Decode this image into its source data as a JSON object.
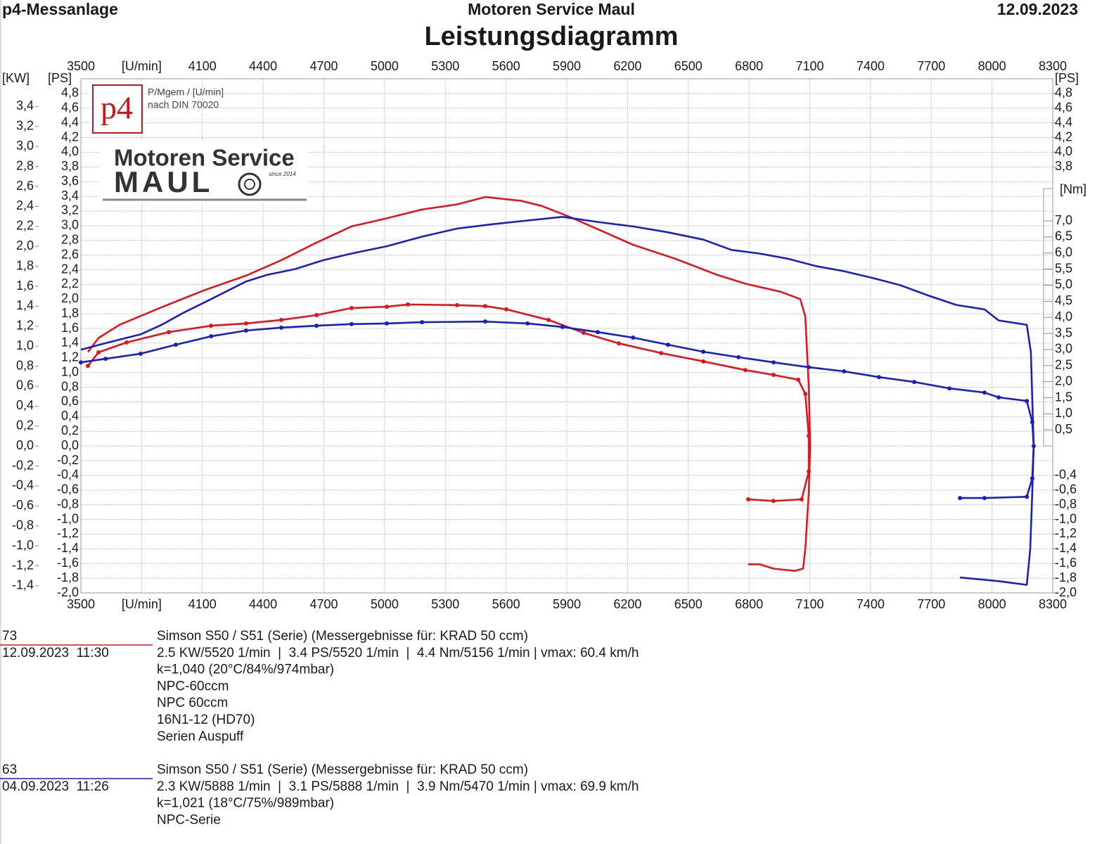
{
  "header": {
    "left": "p4-Messanlage",
    "center": "Motoren Service Maul",
    "right": "12.09.2023"
  },
  "chart_data": {
    "type": "line",
    "title": "Leistungsdiagramm",
    "logo": {
      "badge": "p4",
      "note1": "P/Mgem / [U/min]",
      "note2": "nach DIN 70020",
      "brand1": "Motoren Service",
      "brand2": "MAUL",
      "since": "since 2014"
    },
    "grid": true,
    "xlim": [
      3500,
      8300
    ],
    "xticks": [
      3500,
      {
        "value": 3800,
        "label": "[U/min]"
      },
      4100,
      4400,
      4700,
      5000,
      5300,
      5600,
      5900,
      6200,
      6500,
      6800,
      7100,
      7400,
      7700,
      8000,
      8300
    ],
    "ylabel": "[PS]",
    "ylim": [
      -2.0,
      5.0
    ],
    "yticks": [
      {
        "value": -2.0,
        "label": "-2,0"
      },
      {
        "value": -1.8,
        "label": "-1,8"
      },
      {
        "value": -1.6,
        "label": "-1,6"
      },
      {
        "value": -1.4,
        "label": "-1,4"
      },
      {
        "value": -1.2,
        "label": "-1,2"
      },
      {
        "value": -1.0,
        "label": "-1,0"
      },
      {
        "value": -0.8,
        "label": "-0,8"
      },
      {
        "value": -0.6,
        "label": "-0,6"
      },
      {
        "value": -0.4,
        "label": "-0,4"
      },
      {
        "value": -0.2,
        "label": "-0,2"
      },
      {
        "value": 0.0,
        "label": "0,0"
      },
      {
        "value": 0.2,
        "label": "0,2"
      },
      {
        "value": 0.4,
        "label": "0,4"
      },
      {
        "value": 0.6,
        "label": "0,6"
      },
      {
        "value": 0.8,
        "label": "0,8"
      },
      {
        "value": 1.0,
        "label": "1,0"
      },
      {
        "value": 1.2,
        "label": "1,2"
      },
      {
        "value": 1.4,
        "label": "1,4"
      },
      {
        "value": 1.6,
        "label": "1,6"
      },
      {
        "value": 1.8,
        "label": "1,8"
      },
      {
        "value": 2.0,
        "label": "2,0"
      },
      {
        "value": 2.2,
        "label": "2,2"
      },
      {
        "value": 2.4,
        "label": "2,4"
      },
      {
        "value": 2.6,
        "label": "2,6"
      },
      {
        "value": 2.8,
        "label": "2,8"
      },
      {
        "value": 3.0,
        "label": "3,0"
      },
      {
        "value": 3.2,
        "label": "3,2"
      },
      {
        "value": 3.4,
        "label": "3,4"
      },
      {
        "value": 3.6,
        "label": "3,6"
      },
      {
        "value": 3.8,
        "label": "3,8"
      },
      {
        "value": 4.0,
        "label": "4,0"
      },
      {
        "value": 4.2,
        "label": "4,2"
      },
      {
        "value": 4.4,
        "label": "4,4"
      },
      {
        "value": 4.6,
        "label": "4,6"
      },
      {
        "value": 4.8,
        "label": "4,8"
      }
    ],
    "yticks_right": [
      {
        "value": 4.8,
        "label": "4,8"
      },
      {
        "value": 4.6,
        "label": "4,6"
      },
      {
        "value": 4.4,
        "label": "4,4"
      },
      {
        "value": 4.2,
        "label": "4,2"
      },
      {
        "value": 4.0,
        "label": "4,0"
      },
      {
        "value": 3.8,
        "label": "3,8"
      },
      {
        "value": -0.4,
        "label": "-0,4"
      },
      {
        "value": -0.6,
        "label": "-0,6"
      },
      {
        "value": -0.8,
        "label": "-0,8"
      },
      {
        "value": -1.0,
        "label": "-1,0"
      },
      {
        "value": -1.2,
        "label": "-1,2"
      },
      {
        "value": -1.4,
        "label": "-1,4"
      },
      {
        "value": -1.6,
        "label": "-1,6"
      },
      {
        "value": -1.8,
        "label": "-1,8"
      },
      {
        "value": -2.0,
        "label": "-2,0"
      }
    ],
    "kwlabel": "[KW]",
    "kwlim": [
      -1.471,
      3.678
    ],
    "kwticks": [
      {
        "value": -1.4,
        "label": "-1,4"
      },
      {
        "value": -1.2,
        "label": "-1,2"
      },
      {
        "value": -1.0,
        "label": "-1,0"
      },
      {
        "value": -0.8,
        "label": "-0,8"
      },
      {
        "value": -0.6,
        "label": "-0,6"
      },
      {
        "value": -0.4,
        "label": "-0,4"
      },
      {
        "value": -0.2,
        "label": "-0,2"
      },
      {
        "value": 0.0,
        "label": "0,0"
      },
      {
        "value": 0.2,
        "label": "0,2"
      },
      {
        "value": 0.4,
        "label": "0,4"
      },
      {
        "value": 0.6,
        "label": "0,6"
      },
      {
        "value": 0.8,
        "label": "0,8"
      },
      {
        "value": 1.0,
        "label": "1,0"
      },
      {
        "value": 1.2,
        "label": "1,2"
      },
      {
        "value": 1.4,
        "label": "1,4"
      },
      {
        "value": 1.6,
        "label": "1,6"
      },
      {
        "value": 1.8,
        "label": "1,8"
      },
      {
        "value": 2.0,
        "label": "2,0"
      },
      {
        "value": 2.2,
        "label": "2,2"
      },
      {
        "value": 2.4,
        "label": "2,4"
      },
      {
        "value": 2.6,
        "label": "2,6"
      },
      {
        "value": 2.8,
        "label": "2,8"
      },
      {
        "value": 3.0,
        "label": "3,0"
      },
      {
        "value": 3.2,
        "label": "3,2"
      },
      {
        "value": 3.4,
        "label": "3,4"
      }
    ],
    "y2label": "[Nm]",
    "y2lim": [
      -4.57,
      11.42
    ],
    "y2ticks": [
      {
        "value": 0.5,
        "label": "0,5"
      },
      {
        "value": 1.0,
        "label": "1,0"
      },
      {
        "value": 1.5,
        "label": "1,5"
      },
      {
        "value": 2.0,
        "label": "2,0"
      },
      {
        "value": 2.5,
        "label": "2,5"
      },
      {
        "value": 3.0,
        "label": "3,0"
      },
      {
        "value": 3.5,
        "label": "3,5"
      },
      {
        "value": 4.0,
        "label": "4,0"
      },
      {
        "value": 4.5,
        "label": "4,5"
      },
      {
        "value": 5.0,
        "label": "5,0"
      },
      {
        "value": 5.5,
        "label": "5,5"
      },
      {
        "value": 6.0,
        "label": "6,0"
      },
      {
        "value": 6.5,
        "label": "6,5"
      },
      {
        "value": 7.0,
        "label": "7,0"
      }
    ],
    "series": [
      {
        "color": "#e3141b",
        "axis": "y",
        "markers": false,
        "x": [
          3535,
          3587,
          3691,
          3899,
          4108,
          4316,
          4490,
          4664,
          4837,
          5011,
          5185,
          5358,
          5497,
          5671,
          5775,
          5914,
          6088,
          6227,
          6435,
          6643,
          6782,
          6956,
          7053,
          7078,
          7095,
          7102,
          7095,
          7078,
          7067,
          7025,
          6921,
          6852,
          6796
        ],
        "values": [
          1.28,
          1.47,
          1.65,
          1.89,
          2.12,
          2.32,
          2.53,
          2.77,
          2.99,
          3.1,
          3.22,
          3.29,
          3.39,
          3.34,
          3.27,
          3.12,
          2.91,
          2.74,
          2.55,
          2.33,
          2.21,
          2.1,
          2.0,
          1.76,
          0.8,
          0.0,
          -0.63,
          -1.4,
          -1.67,
          -1.7,
          -1.67,
          -1.61,
          -1.61
        ]
      },
      {
        "color": "#e3141b",
        "axis": "y2",
        "markers": true,
        "x": [
          3535,
          3587,
          3726,
          3934,
          4143,
          4316,
          4490,
          4664,
          4837,
          5011,
          5115,
          5358,
          5497,
          5601,
          5810,
          5983,
          6157,
          6366,
          6574,
          6782,
          6921,
          7043,
          7078,
          7095,
          7095,
          7060,
          6921,
          6796
        ],
        "values": [
          2.49,
          2.91,
          3.22,
          3.54,
          3.74,
          3.81,
          3.92,
          4.07,
          4.29,
          4.33,
          4.4,
          4.38,
          4.35,
          4.25,
          3.92,
          3.52,
          3.19,
          2.89,
          2.63,
          2.36,
          2.21,
          2.06,
          1.62,
          0.31,
          -0.79,
          -1.66,
          -1.71,
          -1.66
        ]
      },
      {
        "color": "#1a1fc0",
        "axis": "y",
        "markers": false,
        "x": [
          3500,
          3622,
          3795,
          3899,
          4004,
          4143,
          4316,
          4420,
          4559,
          4698,
          4837,
          5011,
          5185,
          5358,
          5532,
          5706,
          5879,
          6053,
          6227,
          6400,
          6574,
          6713,
          6852,
          6991,
          7130,
          7269,
          7407,
          7546,
          7685,
          7824,
          7963,
          8033,
          8172,
          8192,
          8206,
          8199,
          8189,
          8172,
          8033,
          7842
        ],
        "values": [
          1.31,
          1.4,
          1.52,
          1.65,
          1.81,
          2.0,
          2.24,
          2.33,
          2.41,
          2.53,
          2.62,
          2.72,
          2.85,
          2.96,
          3.02,
          3.07,
          3.12,
          3.05,
          2.99,
          2.91,
          2.81,
          2.67,
          2.62,
          2.55,
          2.45,
          2.38,
          2.29,
          2.19,
          2.05,
          1.92,
          1.86,
          1.71,
          1.65,
          1.28,
          0.0,
          -0.63,
          -1.4,
          -1.89,
          -1.84,
          -1.79
        ]
      },
      {
        "color": "#1a1fc0",
        "axis": "y2",
        "markers": true,
        "x": [
          3500,
          3622,
          3795,
          3969,
          4143,
          4316,
          4490,
          4664,
          4837,
          5011,
          5185,
          5497,
          5706,
          5879,
          6053,
          6227,
          6400,
          6574,
          6748,
          6921,
          7095,
          7269,
          7442,
          7616,
          7790,
          7963,
          8033,
          8172,
          8199,
          8206,
          8199,
          8172,
          7963,
          7842
        ],
        "values": [
          2.6,
          2.71,
          2.87,
          3.15,
          3.41,
          3.59,
          3.68,
          3.74,
          3.79,
          3.81,
          3.85,
          3.87,
          3.81,
          3.7,
          3.54,
          3.37,
          3.15,
          2.93,
          2.76,
          2.6,
          2.45,
          2.32,
          2.14,
          1.99,
          1.79,
          1.66,
          1.51,
          1.4,
          0.74,
          0,
          -1.01,
          -1.58,
          -1.62,
          -1.62
        ]
      }
    ],
    "runs": [
      {
        "id": "73",
        "date": "12.09.2023  11:30",
        "color": "#e3141b",
        "lines": [
          "Simson S50 / S51 (Serie) (Messergebnisse für: KRAD 50 ccm)",
          "2.5 KW/5520 1/min  |  3.4 PS/5520 1/min  |  4.4 Nm/5156 1/min | vmax: 60.4 km/h",
          "k=1,040 (20°C/84%/974mbar)",
          "NPC-60ccm",
          "NPC 60ccm",
          "16N1-12 (HD70)",
          "Serien Auspuff"
        ]
      },
      {
        "id": "63",
        "date": "04.09.2023  11:26",
        "color": "#1a1fc0",
        "lines": [
          "Simson S50 / S51 (Serie) (Messergebnisse für: KRAD 50 ccm)",
          "2.3 KW/5888 1/min  |  3.1 PS/5888 1/min  |  3.9 Nm/5470 1/min | vmax: 69.9 km/h",
          "k=1,021 (18°C/75%/989mbar)",
          "NPC-Serie"
        ]
      }
    ]
  }
}
